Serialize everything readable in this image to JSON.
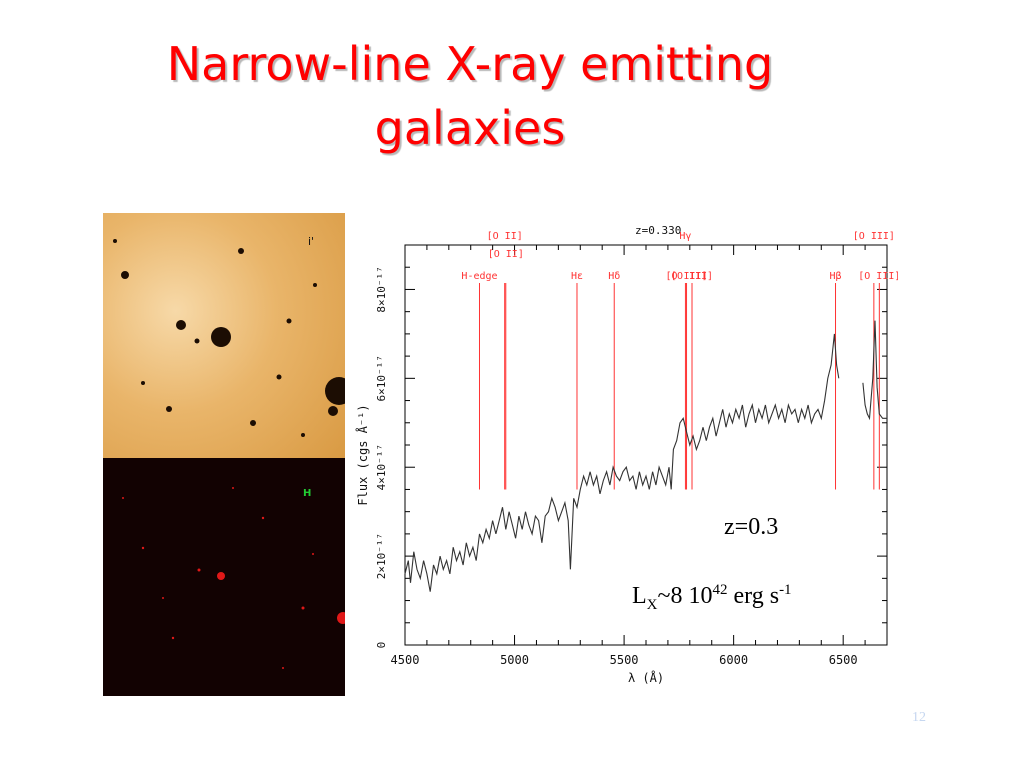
{
  "slide": {
    "title_line1": "Narrow-line X-ray emitting",
    "title_line2": "galaxies",
    "page_number": "12",
    "title_color": "#ff0000"
  },
  "images": {
    "top_label": "i'",
    "bottom_label": "H"
  },
  "annotations": {
    "redshift": "z=0.3",
    "lum_L": "L",
    "lum_sub": "X",
    "lum_mid": "~8 10",
    "lum_exp": "42",
    "lum_unit": " erg s",
    "lum_unit_exp": "-1"
  },
  "chart_data": {
    "type": "line",
    "title": "z=0.330",
    "xlabel": "λ (Å)",
    "ylabel": "Flux (cgs Å⁻¹)",
    "xlim": [
      4500,
      6700
    ],
    "ylim": [
      0,
      9e-17
    ],
    "x_ticks": [
      4500,
      5000,
      5500,
      6000,
      6500
    ],
    "y_ticks": [
      {
        "value": 0,
        "label": "0"
      },
      {
        "value": 2e-17,
        "label": "2×10⁻¹⁷"
      },
      {
        "value": 4e-17,
        "label": "4×10⁻¹⁷"
      },
      {
        "value": 6e-17,
        "label": "6×10⁻¹⁷"
      },
      {
        "value": 8e-17,
        "label": "8×10⁻¹⁷"
      }
    ],
    "line_color": "#ff3333",
    "lines": [
      {
        "label": "H-edge",
        "x": 4840,
        "row": 3
      },
      {
        "label": "[O II]",
        "x": 4955,
        "row": 1
      },
      {
        "label": "[O II]",
        "x": 4960,
        "row": 2
      },
      {
        "label": "Hε",
        "x": 5285,
        "row": 3
      },
      {
        "label": "Hδ",
        "x": 5455,
        "row": 3
      },
      {
        "label": "Hγ",
        "x": 5780,
        "row": 1
      },
      {
        "label": "[O III]",
        "x": 5785,
        "row": 3
      },
      {
        "label": "[O III]",
        "x": 5810,
        "row": 3
      },
      {
        "label": "Hβ",
        "x": 6465,
        "row": 3
      },
      {
        "label": "[O III]",
        "x": 6640,
        "row": 1
      },
      {
        "label": "[O III]",
        "x": 6665,
        "row": 3
      }
    ],
    "series": [
      {
        "segments": [
          [
            [
              4500,
              1.6
            ],
            [
              4515,
              1.9
            ],
            [
              4525,
              1.4
            ],
            [
              4540,
              2.1
            ],
            [
              4555,
              1.7
            ],
            [
              4570,
              1.5
            ],
            [
              4585,
              1.9
            ],
            [
              4600,
              1.6
            ],
            [
              4615,
              1.2
            ],
            [
              4630,
              1.8
            ],
            [
              4645,
              1.6
            ],
            [
              4660,
              2.0
            ],
            [
              4675,
              1.7
            ],
            [
              4690,
              1.9
            ],
            [
              4705,
              1.6
            ],
            [
              4720,
              2.2
            ],
            [
              4735,
              1.9
            ],
            [
              4750,
              2.1
            ],
            [
              4765,
              1.8
            ],
            [
              4780,
              2.3
            ],
            [
              4795,
              2.0
            ],
            [
              4810,
              2.2
            ],
            [
              4825,
              1.9
            ],
            [
              4840,
              2.5
            ],
            [
              4855,
              2.3
            ],
            [
              4870,
              2.6
            ],
            [
              4885,
              2.4
            ],
            [
              4900,
              2.8
            ],
            [
              4915,
              2.5
            ],
            [
              4930,
              2.8
            ],
            [
              4945,
              3.1
            ],
            [
              4960,
              2.6
            ],
            [
              4975,
              3.0
            ],
            [
              4990,
              2.7
            ],
            [
              5005,
              2.4
            ],
            [
              5020,
              2.9
            ],
            [
              5035,
              2.6
            ],
            [
              5050,
              3.0
            ],
            [
              5065,
              2.7
            ],
            [
              5080,
              2.5
            ],
            [
              5095,
              2.9
            ],
            [
              5110,
              2.8
            ],
            [
              5125,
              2.3
            ],
            [
              5140,
              2.9
            ],
            [
              5155,
              3.0
            ],
            [
              5170,
              3.3
            ],
            [
              5185,
              3.1
            ],
            [
              5200,
              2.8
            ],
            [
              5215,
              3.0
            ],
            [
              5230,
              3.2
            ],
            [
              5245,
              2.8
            ],
            [
              5255,
              1.7
            ],
            [
              5270,
              3.3
            ],
            [
              5285,
              3.1
            ],
            [
              5300,
              3.5
            ],
            [
              5315,
              3.8
            ],
            [
              5330,
              3.6
            ],
            [
              5345,
              3.9
            ],
            [
              5360,
              3.6
            ],
            [
              5375,
              3.8
            ],
            [
              5390,
              3.4
            ],
            [
              5405,
              3.7
            ],
            [
              5420,
              3.9
            ],
            [
              5435,
              3.6
            ],
            [
              5450,
              4.0
            ],
            [
              5465,
              3.8
            ],
            [
              5480,
              3.7
            ],
            [
              5495,
              3.9
            ],
            [
              5510,
              4.0
            ],
            [
              5525,
              3.7
            ],
            [
              5540,
              3.8
            ],
            [
              5555,
              3.5
            ],
            [
              5570,
              3.9
            ],
            [
              5585,
              3.6
            ],
            [
              5600,
              3.8
            ],
            [
              5615,
              3.5
            ],
            [
              5630,
              3.9
            ],
            [
              5645,
              3.6
            ],
            [
              5660,
              4.0
            ],
            [
              5675,
              3.8
            ],
            [
              5690,
              3.6
            ],
            [
              5705,
              4.0
            ],
            [
              5715,
              3.5
            ],
            [
              5725,
              4.4
            ],
            [
              5740,
              4.6
            ],
            [
              5755,
              5.0
            ],
            [
              5770,
              5.1
            ],
            [
              5785,
              4.8
            ],
            [
              5800,
              4.5
            ],
            [
              5815,
              4.7
            ],
            [
              5830,
              4.4
            ],
            [
              5845,
              4.6
            ],
            [
              5860,
              4.9
            ],
            [
              5875,
              4.6
            ],
            [
              5890,
              4.9
            ],
            [
              5905,
              5.1
            ],
            [
              5920,
              4.7
            ],
            [
              5935,
              5.0
            ],
            [
              5950,
              5.3
            ],
            [
              5965,
              4.9
            ],
            [
              5980,
              5.2
            ],
            [
              5995,
              5.0
            ],
            [
              6010,
              5.3
            ],
            [
              6025,
              5.1
            ],
            [
              6040,
              5.4
            ],
            [
              6055,
              4.9
            ],
            [
              6070,
              5.2
            ],
            [
              6085,
              5.4
            ],
            [
              6100,
              5.0
            ],
            [
              6115,
              5.3
            ],
            [
              6130,
              5.1
            ],
            [
              6145,
              5.4
            ],
            [
              6160,
              5.0
            ],
            [
              6175,
              5.2
            ],
            [
              6190,
              5.4
            ],
            [
              6205,
              5.1
            ],
            [
              6220,
              5.3
            ],
            [
              6235,
              5.0
            ],
            [
              6250,
              5.4
            ],
            [
              6265,
              5.2
            ],
            [
              6280,
              5.3
            ],
            [
              6295,
              5.0
            ],
            [
              6310,
              5.3
            ],
            [
              6325,
              5.1
            ],
            [
              6340,
              5.4
            ],
            [
              6355,
              5.0
            ],
            [
              6370,
              5.2
            ],
            [
              6385,
              5.3
            ],
            [
              6400,
              5.1
            ],
            [
              6415,
              5.5
            ],
            [
              6430,
              6.0
            ],
            [
              6445,
              6.3
            ],
            [
              6460,
              7.0
            ],
            [
              6470,
              6.3
            ],
            [
              6480,
              6.0
            ]
          ],
          [
            [
              6590,
              5.9
            ],
            [
              6600,
              5.4
            ],
            [
              6610,
              5.2
            ],
            [
              6620,
              5.1
            ],
            [
              6635,
              6.0
            ],
            [
              6645,
              7.3
            ],
            [
              6655,
              5.8
            ],
            [
              6665,
              5.2
            ],
            [
              6680,
              5.1
            ],
            [
              6700,
              5.1
            ]
          ]
        ]
      }
    ]
  }
}
